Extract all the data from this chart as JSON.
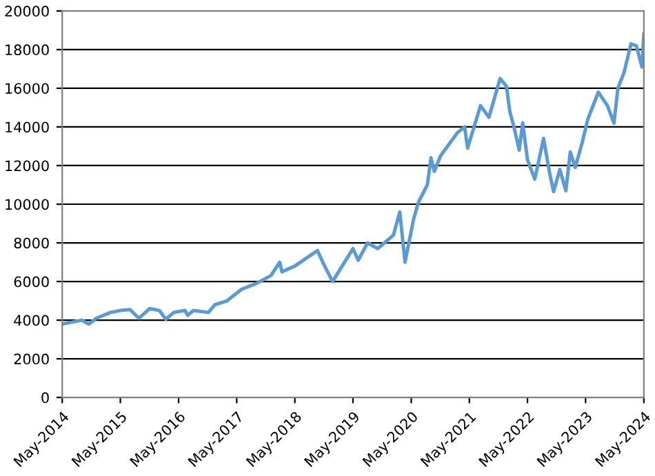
{
  "chart_data": {
    "type": "line",
    "x": [
      "2014-05-01",
      "2014-09-01",
      "2014-10-15",
      "2014-12-01",
      "2015-03-01",
      "2015-05-01",
      "2015-07-01",
      "2015-08-25",
      "2015-11-01",
      "2016-01-01",
      "2016-02-11",
      "2016-04-01",
      "2016-06-10",
      "2016-06-27",
      "2016-08-01",
      "2016-11-04",
      "2016-12-15",
      "2017-03-01",
      "2017-06-01",
      "2017-09-01",
      "2017-12-01",
      "2018-01-26",
      "2018-02-09",
      "2018-05-01",
      "2018-08-15",
      "2018-09-20",
      "2018-10-29",
      "2018-12-24",
      "2019-05-01",
      "2019-06-03",
      "2019-08-01",
      "2019-10-03",
      "2020-01-10",
      "2020-02-19",
      "2020-03-23",
      "2020-05-15",
      "2020-06-15",
      "2020-08-10",
      "2020-09-02",
      "2020-09-23",
      "2020-11-01",
      "2021-02-15",
      "2021-04-01",
      "2021-04-20",
      "2021-07-10",
      "2021-09-01",
      "2021-11-10",
      "2021-12-20",
      "2022-01-10",
      "2022-02-05",
      "2022-03-10",
      "2022-04-01",
      "2022-05-01",
      "2022-06-16",
      "2022-08-10",
      "2022-09-15",
      "2022-10-12",
      "2022-11-20",
      "2022-12-28",
      "2023-01-25",
      "2023-02-25",
      "2023-04-10",
      "2023-05-15",
      "2023-07-20",
      "2023-09-15",
      "2023-10-26",
      "2023-11-20",
      "2023-12-28",
      "2024-02-10",
      "2024-03-15",
      "2024-04-19",
      "2024-05-01"
    ],
    "series": [
      {
        "color": "#5b9bd5",
        "values": [
          3800,
          4000,
          3800,
          4100,
          4400,
          4500,
          4550,
          4100,
          4600,
          4500,
          4050,
          4400,
          4500,
          4250,
          4500,
          4400,
          4800,
          5000,
          5600,
          5900,
          6300,
          7000,
          6500,
          6800,
          7400,
          7600,
          6900,
          6000,
          7700,
          7100,
          8000,
          7700,
          8400,
          9600,
          7000,
          9200,
          10100,
          11000,
          12400,
          11700,
          12500,
          13700,
          14000,
          12900,
          15100,
          14500,
          16500,
          16100,
          14800,
          14000,
          12800,
          14200,
          12300,
          11300,
          13400,
          11700,
          10650,
          11800,
          10700,
          12700,
          11900,
          13200,
          14400,
          15800,
          15100,
          14200,
          16000,
          16800,
          18300,
          18200,
          17100,
          18800
        ]
      }
    ],
    "xlim": [
      "2014-05-01",
      "2024-05-01"
    ],
    "xticks": [
      {
        "value": "2014-05-01",
        "label": "May-2014"
      },
      {
        "value": "2015-05-01",
        "label": "May-2015"
      },
      {
        "value": "2016-05-01",
        "label": "May-2016"
      },
      {
        "value": "2017-05-01",
        "label": "May-2017"
      },
      {
        "value": "2018-05-01",
        "label": "May-2018"
      },
      {
        "value": "2019-05-01",
        "label": "May-2019"
      },
      {
        "value": "2020-05-01",
        "label": "May-2020"
      },
      {
        "value": "2021-05-01",
        "label": "May-2021"
      },
      {
        "value": "2022-05-01",
        "label": "May-2022"
      },
      {
        "value": "2023-05-01",
        "label": "May-2023"
      },
      {
        "value": "2024-05-01",
        "label": "May-2024"
      }
    ],
    "ylim": [
      0,
      20000
    ],
    "yticks": [
      0,
      2000,
      4000,
      6000,
      8000,
      10000,
      12000,
      14000,
      16000,
      18000,
      20000
    ],
    "grid": "y"
  }
}
